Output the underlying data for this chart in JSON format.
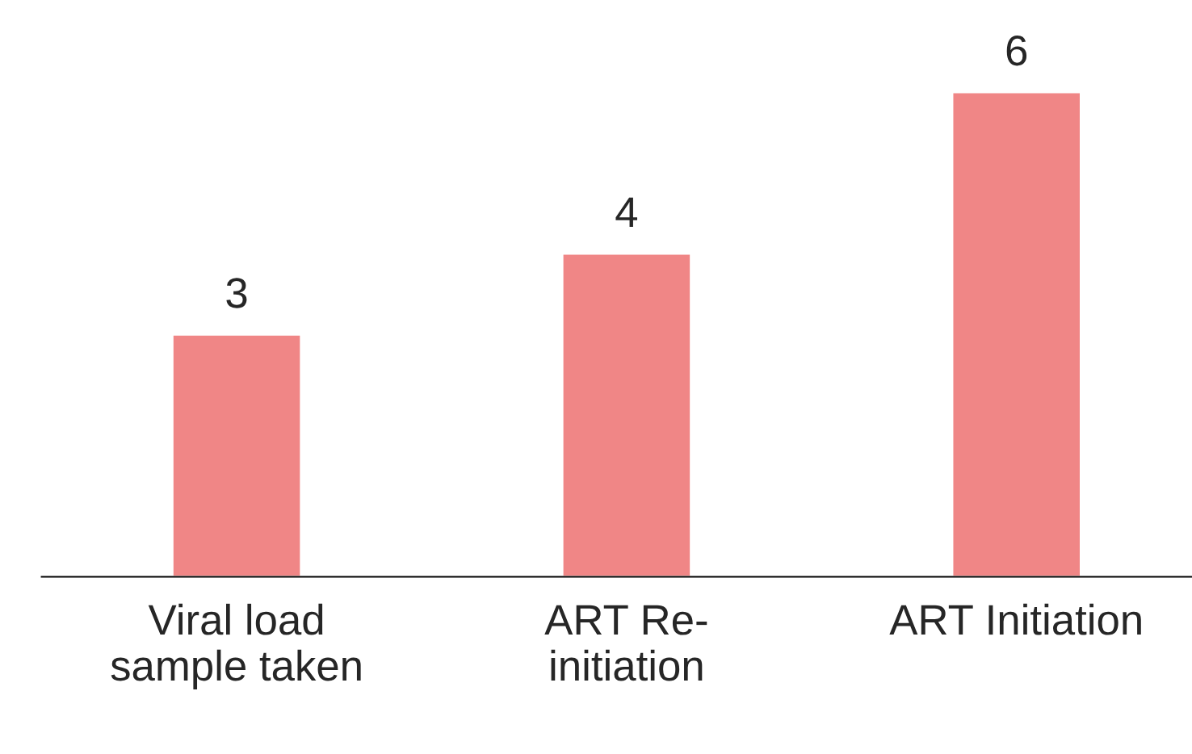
{
  "chart_data": {
    "type": "bar",
    "categories": [
      "Viral load\nsample taken",
      "ART Re-\ninitiation",
      "ART Initiation"
    ],
    "values": [
      3,
      4,
      6
    ],
    "color": "#f08686",
    "data_labels": true,
    "tick_labels": "x",
    "grid": false,
    "legend": false
  }
}
